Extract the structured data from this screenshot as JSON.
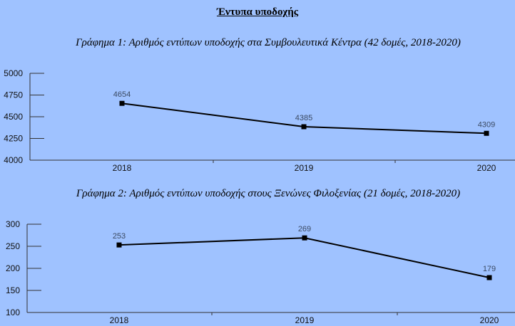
{
  "heading": "Έντυπα υποδοχής",
  "chart_data": [
    {
      "type": "line",
      "title": "Γράφημα 1: Αριθμός εντύπων υποδοχής στα Συμβουλευτικά Κέντρα (42 δομές, 2018-2020)",
      "categories": [
        "2018",
        "2019",
        "2020"
      ],
      "values": [
        4654,
        4385,
        4309
      ],
      "data_labels": [
        "4654",
        "4385",
        "4309"
      ],
      "ylim": [
        4000,
        5000
      ],
      "yticks": [
        4000,
        4250,
        4500,
        4750,
        5000
      ],
      "ytick_labels": [
        "4000",
        "4250",
        "4500",
        "4750",
        "5000"
      ],
      "marker": "square",
      "line_color": "#000000",
      "grid": false,
      "xlabel": "",
      "ylabel": ""
    },
    {
      "type": "line",
      "title": "Γράφημα 2: Αριθμός εντύπων υποδοχής στους Ξενώνες Φιλοξενίας (21 δομές, 2018-2020)",
      "categories": [
        "2018",
        "2019",
        "2020"
      ],
      "values": [
        253,
        269,
        179
      ],
      "data_labels": [
        "253",
        "269",
        "179"
      ],
      "ylim": [
        100,
        300
      ],
      "yticks": [
        100,
        150,
        200,
        250,
        300
      ],
      "ytick_labels": [
        "100",
        "150",
        "200",
        "250",
        "300"
      ],
      "marker": "square",
      "line_color": "#000000",
      "grid": false,
      "xlabel": "",
      "ylabel": ""
    }
  ]
}
